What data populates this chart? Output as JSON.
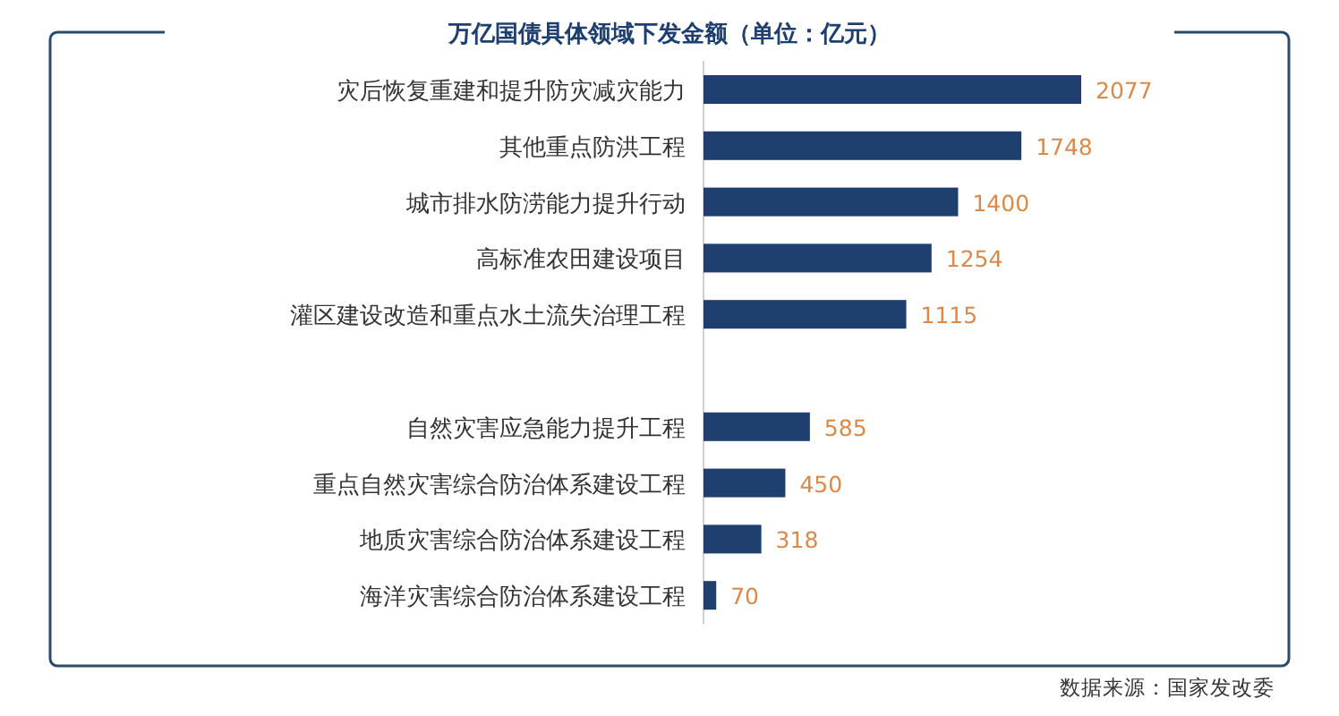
{
  "chart_data": {
    "type": "bar",
    "orientation": "horizontal",
    "title": "万亿国债具体领域下发金额（单位：亿元）",
    "categories": [
      "灾后恢复重建和提升防灾减灾能力",
      "其他重点防洪工程",
      "城市排水防涝能力提升行动",
      "高标准农田建设项目",
      "灌区建设改造和重点水土流失治理工程",
      null,
      "自然灾害应急能力提升工程",
      "重点自然灾害综合防治体系建设工程",
      "地质灾害综合防治体系建设工程",
      "海洋灾害综合防治体系建设工程"
    ],
    "values": [
      2077,
      1748,
      1400,
      1254,
      1115,
      null,
      585,
      450,
      318,
      70
    ],
    "color": "#1f3f6e",
    "data_labels": true,
    "annotations": [
      "数据来源：国家发改委"
    ]
  }
}
